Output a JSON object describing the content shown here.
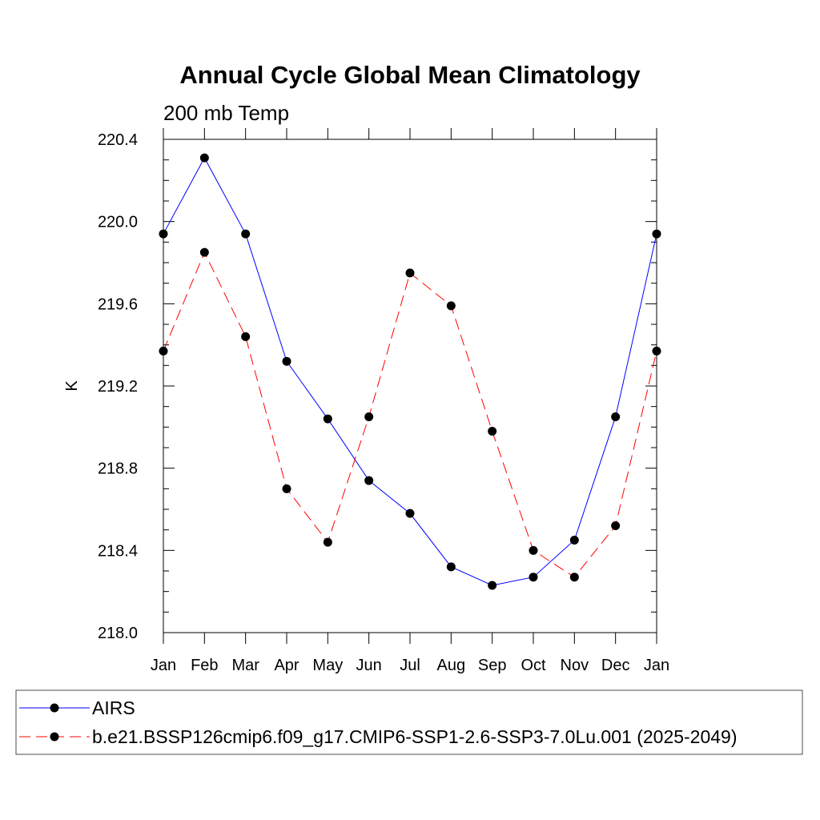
{
  "chart_data": {
    "type": "line",
    "title": "Annual Cycle Global Mean Climatology",
    "subtitle": "200 mb Temp",
    "ylabel": "K",
    "xlabel": "",
    "categories": [
      "Jan",
      "Feb",
      "Mar",
      "Apr",
      "May",
      "Jun",
      "Jul",
      "Aug",
      "Sep",
      "Oct",
      "Nov",
      "Dec",
      "Jan"
    ],
    "ylim": [
      218.0,
      220.4
    ],
    "yticks": [
      "218.0",
      "218.4",
      "218.8",
      "219.2",
      "219.6",
      "220.0",
      "220.4"
    ],
    "grid": false,
    "legend_position": "bottom",
    "series": [
      {
        "name": "AIRS",
        "color": "#0000ff",
        "dash": "solid",
        "values": [
          219.94,
          220.31,
          219.94,
          219.32,
          219.04,
          218.74,
          218.58,
          218.32,
          218.23,
          218.27,
          218.45,
          219.05,
          219.94
        ]
      },
      {
        "name": "b.e21.BSSP126cmip6.f09_g17.CMIP6-SSP1-2.6-SSP3-7.0Lu.001 (2025-2049)",
        "color": "#ff0000",
        "dash": "dashed",
        "values": [
          219.37,
          219.85,
          219.44,
          218.7,
          218.44,
          219.05,
          219.75,
          219.59,
          218.98,
          218.4,
          218.27,
          218.52,
          219.37
        ]
      }
    ]
  }
}
